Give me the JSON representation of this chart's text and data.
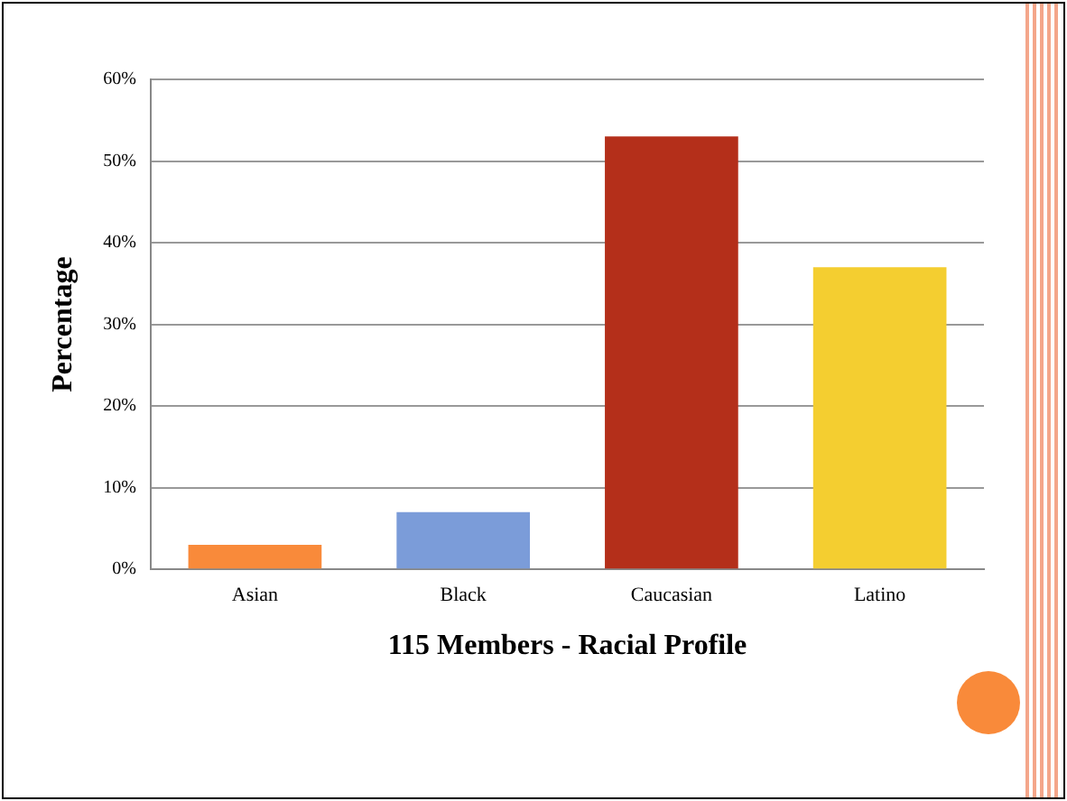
{
  "chart_data": {
    "type": "bar",
    "xlabel": "115 Members - Racial Profile",
    "ylabel": "Percentage",
    "categories": [
      "Asian",
      "Black",
      "Caucasian",
      "Latino"
    ],
    "values": [
      3,
      7,
      53,
      37
    ],
    "colors": [
      "#f98a3a",
      "#7b9cd9",
      "#b42f1a",
      "#f4ce30"
    ],
    "ylim": [
      0,
      60
    ],
    "yticks": [
      {
        "value": 0,
        "label": "0%"
      },
      {
        "value": 10,
        "label": "10%"
      },
      {
        "value": 20,
        "label": "20%"
      },
      {
        "value": 30,
        "label": "30%"
      },
      {
        "value": 40,
        "label": "40%"
      },
      {
        "value": 50,
        "label": "50%"
      },
      {
        "value": 60,
        "label": "60%"
      }
    ],
    "grid": "y",
    "legend": false
  }
}
